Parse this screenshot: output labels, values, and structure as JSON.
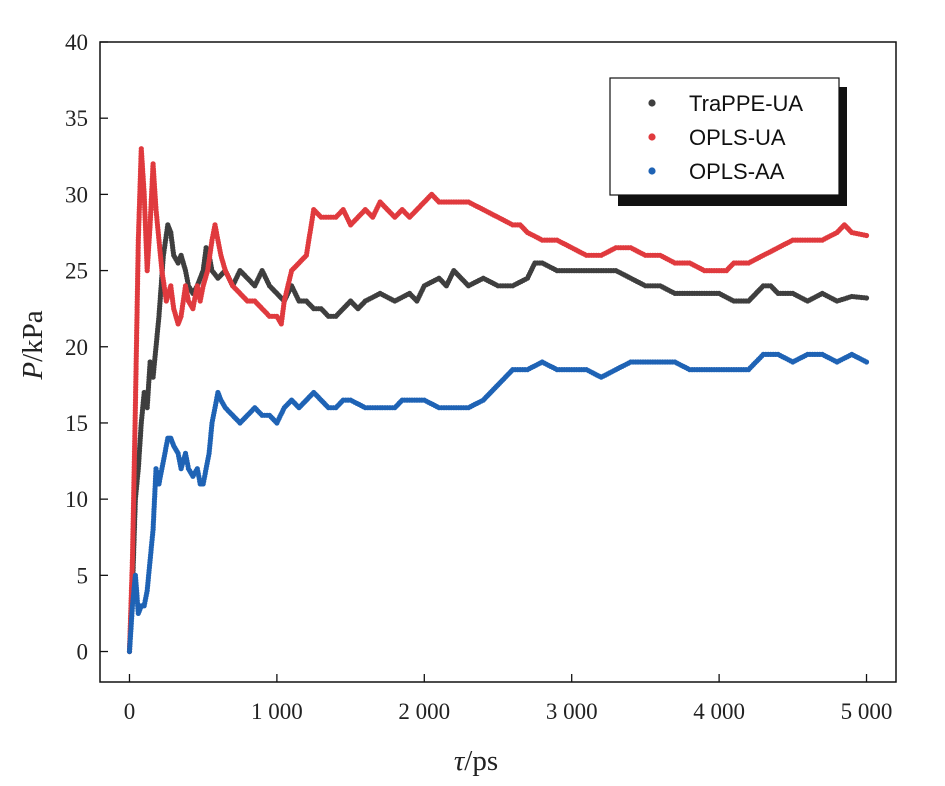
{
  "chart_data": {
    "type": "scatter",
    "xlabel_var": "τ",
    "xlabel_unit": "/ps",
    "ylabel_var": "P",
    "ylabel_unit": "/kPa",
    "xlim": [
      -200,
      5200
    ],
    "ylim": [
      -2,
      40
    ],
    "x_ticks": [
      0,
      1000,
      2000,
      3000,
      4000,
      5000
    ],
    "x_tick_labels": [
      "0",
      "1 000",
      "2 000",
      "3 000",
      "4 000",
      "5 000"
    ],
    "y_ticks": [
      0,
      5,
      10,
      15,
      20,
      25,
      30,
      35,
      40
    ],
    "y_tick_labels": [
      "0",
      "5",
      "10",
      "15",
      "20",
      "25",
      "30",
      "35",
      "40"
    ],
    "grid": false,
    "legend_position": "top-right",
    "series": [
      {
        "name": "TraPPE-UA",
        "color": "#3f3f3f",
        "points": [
          [
            0,
            0
          ],
          [
            20,
            4
          ],
          [
            40,
            10
          ],
          [
            60,
            12
          ],
          [
            80,
            15
          ],
          [
            100,
            17
          ],
          [
            120,
            16
          ],
          [
            140,
            19
          ],
          [
            160,
            18
          ],
          [
            180,
            20
          ],
          [
            200,
            22
          ],
          [
            230,
            26
          ],
          [
            260,
            28
          ],
          [
            280,
            27.5
          ],
          [
            300,
            26
          ],
          [
            330,
            25.5
          ],
          [
            350,
            26
          ],
          [
            380,
            25
          ],
          [
            400,
            24
          ],
          [
            430,
            23.5
          ],
          [
            460,
            24
          ],
          [
            480,
            24.5
          ],
          [
            500,
            25
          ],
          [
            520,
            26.5
          ],
          [
            540,
            26
          ],
          [
            560,
            25
          ],
          [
            600,
            24.5
          ],
          [
            650,
            25
          ],
          [
            700,
            24
          ],
          [
            750,
            25
          ],
          [
            800,
            24.5
          ],
          [
            850,
            24
          ],
          [
            900,
            25
          ],
          [
            950,
            24
          ],
          [
            1000,
            23.5
          ],
          [
            1050,
            23
          ],
          [
            1100,
            24
          ],
          [
            1150,
            23
          ],
          [
            1200,
            23
          ],
          [
            1250,
            22.5
          ],
          [
            1300,
            22.5
          ],
          [
            1350,
            22
          ],
          [
            1400,
            22
          ],
          [
            1450,
            22.5
          ],
          [
            1500,
            23
          ],
          [
            1550,
            22.5
          ],
          [
            1600,
            23
          ],
          [
            1700,
            23.5
          ],
          [
            1800,
            23
          ],
          [
            1900,
            23.5
          ],
          [
            1950,
            23
          ],
          [
            2000,
            24
          ],
          [
            2100,
            24.5
          ],
          [
            2150,
            24
          ],
          [
            2200,
            25
          ],
          [
            2250,
            24.5
          ],
          [
            2300,
            24
          ],
          [
            2400,
            24.5
          ],
          [
            2500,
            24
          ],
          [
            2600,
            24
          ],
          [
            2700,
            24.5
          ],
          [
            2750,
            25.5
          ],
          [
            2800,
            25.5
          ],
          [
            2900,
            25
          ],
          [
            3000,
            25
          ],
          [
            3100,
            25
          ],
          [
            3200,
            25
          ],
          [
            3300,
            25
          ],
          [
            3400,
            24.5
          ],
          [
            3500,
            24
          ],
          [
            3600,
            24
          ],
          [
            3700,
            23.5
          ],
          [
            3800,
            23.5
          ],
          [
            3900,
            23.5
          ],
          [
            4000,
            23.5
          ],
          [
            4100,
            23
          ],
          [
            4200,
            23
          ],
          [
            4250,
            23.5
          ],
          [
            4300,
            24
          ],
          [
            4350,
            24
          ],
          [
            4400,
            23.5
          ],
          [
            4500,
            23.5
          ],
          [
            4600,
            23
          ],
          [
            4700,
            23.5
          ],
          [
            4800,
            23
          ],
          [
            4900,
            23.3
          ],
          [
            5000,
            23.2
          ]
        ]
      },
      {
        "name": "OPLS-UA",
        "color": "#e03a3e",
        "points": [
          [
            0,
            0
          ],
          [
            20,
            6
          ],
          [
            40,
            16
          ],
          [
            60,
            27
          ],
          [
            80,
            33
          ],
          [
            100,
            30
          ],
          [
            120,
            25
          ],
          [
            140,
            28
          ],
          [
            160,
            32
          ],
          [
            180,
            29
          ],
          [
            200,
            27
          ],
          [
            220,
            25
          ],
          [
            250,
            23
          ],
          [
            280,
            24
          ],
          [
            300,
            22.5
          ],
          [
            330,
            21.5
          ],
          [
            350,
            22
          ],
          [
            380,
            24
          ],
          [
            400,
            23
          ],
          [
            430,
            22.5
          ],
          [
            460,
            24
          ],
          [
            480,
            23
          ],
          [
            500,
            24
          ],
          [
            530,
            25
          ],
          [
            560,
            27
          ],
          [
            580,
            28
          ],
          [
            600,
            27
          ],
          [
            620,
            26
          ],
          [
            650,
            25
          ],
          [
            700,
            24
          ],
          [
            750,
            23.5
          ],
          [
            800,
            23
          ],
          [
            850,
            23
          ],
          [
            900,
            22.5
          ],
          [
            950,
            22
          ],
          [
            1000,
            22
          ],
          [
            1030,
            21.5
          ],
          [
            1050,
            23
          ],
          [
            1100,
            25
          ],
          [
            1150,
            25.5
          ],
          [
            1200,
            26
          ],
          [
            1250,
            29
          ],
          [
            1300,
            28.5
          ],
          [
            1350,
            28.5
          ],
          [
            1400,
            28.5
          ],
          [
            1450,
            29
          ],
          [
            1500,
            28
          ],
          [
            1550,
            28.5
          ],
          [
            1600,
            29
          ],
          [
            1650,
            28.5
          ],
          [
            1700,
            29.5
          ],
          [
            1750,
            29
          ],
          [
            1800,
            28.5
          ],
          [
            1850,
            29
          ],
          [
            1900,
            28.5
          ],
          [
            1950,
            29
          ],
          [
            2000,
            29.5
          ],
          [
            2050,
            30
          ],
          [
            2100,
            29.5
          ],
          [
            2150,
            29.5
          ],
          [
            2200,
            29.5
          ],
          [
            2300,
            29.5
          ],
          [
            2400,
            29
          ],
          [
            2500,
            28.5
          ],
          [
            2600,
            28
          ],
          [
            2650,
            28
          ],
          [
            2700,
            27.5
          ],
          [
            2800,
            27
          ],
          [
            2900,
            27
          ],
          [
            3000,
            26.5
          ],
          [
            3100,
            26
          ],
          [
            3200,
            26
          ],
          [
            3300,
            26.5
          ],
          [
            3400,
            26.5
          ],
          [
            3500,
            26
          ],
          [
            3600,
            26
          ],
          [
            3700,
            25.5
          ],
          [
            3800,
            25.5
          ],
          [
            3900,
            25
          ],
          [
            3950,
            25
          ],
          [
            4000,
            25
          ],
          [
            4050,
            25
          ],
          [
            4100,
            25.5
          ],
          [
            4200,
            25.5
          ],
          [
            4300,
            26
          ],
          [
            4400,
            26.5
          ],
          [
            4500,
            27
          ],
          [
            4600,
            27
          ],
          [
            4700,
            27
          ],
          [
            4800,
            27.5
          ],
          [
            4850,
            28
          ],
          [
            4900,
            27.5
          ],
          [
            5000,
            27.3
          ]
        ]
      },
      {
        "name": "OPLS-AA",
        "color": "#1f63b5",
        "points": [
          [
            0,
            0
          ],
          [
            20,
            3
          ],
          [
            40,
            5
          ],
          [
            60,
            2.5
          ],
          [
            80,
            3
          ],
          [
            100,
            3
          ],
          [
            120,
            4
          ],
          [
            140,
            6
          ],
          [
            160,
            8
          ],
          [
            180,
            12
          ],
          [
            200,
            11
          ],
          [
            230,
            12.5
          ],
          [
            260,
            14
          ],
          [
            280,
            14
          ],
          [
            300,
            13.5
          ],
          [
            330,
            13
          ],
          [
            350,
            12
          ],
          [
            380,
            13
          ],
          [
            400,
            12
          ],
          [
            430,
            11.5
          ],
          [
            460,
            12
          ],
          [
            480,
            11
          ],
          [
            500,
            11
          ],
          [
            520,
            12
          ],
          [
            540,
            13
          ],
          [
            560,
            15
          ],
          [
            580,
            16
          ],
          [
            600,
            17
          ],
          [
            620,
            16.5
          ],
          [
            650,
            16
          ],
          [
            700,
            15.5
          ],
          [
            750,
            15
          ],
          [
            800,
            15.5
          ],
          [
            850,
            16
          ],
          [
            900,
            15.5
          ],
          [
            950,
            15.5
          ],
          [
            1000,
            15
          ],
          [
            1050,
            16
          ],
          [
            1100,
            16.5
          ],
          [
            1150,
            16
          ],
          [
            1200,
            16.5
          ],
          [
            1250,
            17
          ],
          [
            1300,
            16.5
          ],
          [
            1350,
            16
          ],
          [
            1400,
            16
          ],
          [
            1450,
            16.5
          ],
          [
            1500,
            16.5
          ],
          [
            1600,
            16
          ],
          [
            1700,
            16
          ],
          [
            1800,
            16
          ],
          [
            1850,
            16.5
          ],
          [
            1900,
            16.5
          ],
          [
            2000,
            16.5
          ],
          [
            2100,
            16
          ],
          [
            2200,
            16
          ],
          [
            2300,
            16
          ],
          [
            2400,
            16.5
          ],
          [
            2450,
            17
          ],
          [
            2500,
            17.5
          ],
          [
            2550,
            18
          ],
          [
            2600,
            18.5
          ],
          [
            2650,
            18.5
          ],
          [
            2700,
            18.5
          ],
          [
            2800,
            19
          ],
          [
            2900,
            18.5
          ],
          [
            3000,
            18.5
          ],
          [
            3100,
            18.5
          ],
          [
            3200,
            18
          ],
          [
            3300,
            18.5
          ],
          [
            3400,
            19
          ],
          [
            3500,
            19
          ],
          [
            3600,
            19
          ],
          [
            3700,
            19
          ],
          [
            3800,
            18.5
          ],
          [
            3900,
            18.5
          ],
          [
            4000,
            18.5
          ],
          [
            4100,
            18.5
          ],
          [
            4200,
            18.5
          ],
          [
            4300,
            19.5
          ],
          [
            4400,
            19.5
          ],
          [
            4500,
            19
          ],
          [
            4600,
            19.5
          ],
          [
            4700,
            19.5
          ],
          [
            4800,
            19
          ],
          [
            4900,
            19.5
          ],
          [
            5000,
            19
          ]
        ]
      }
    ]
  }
}
